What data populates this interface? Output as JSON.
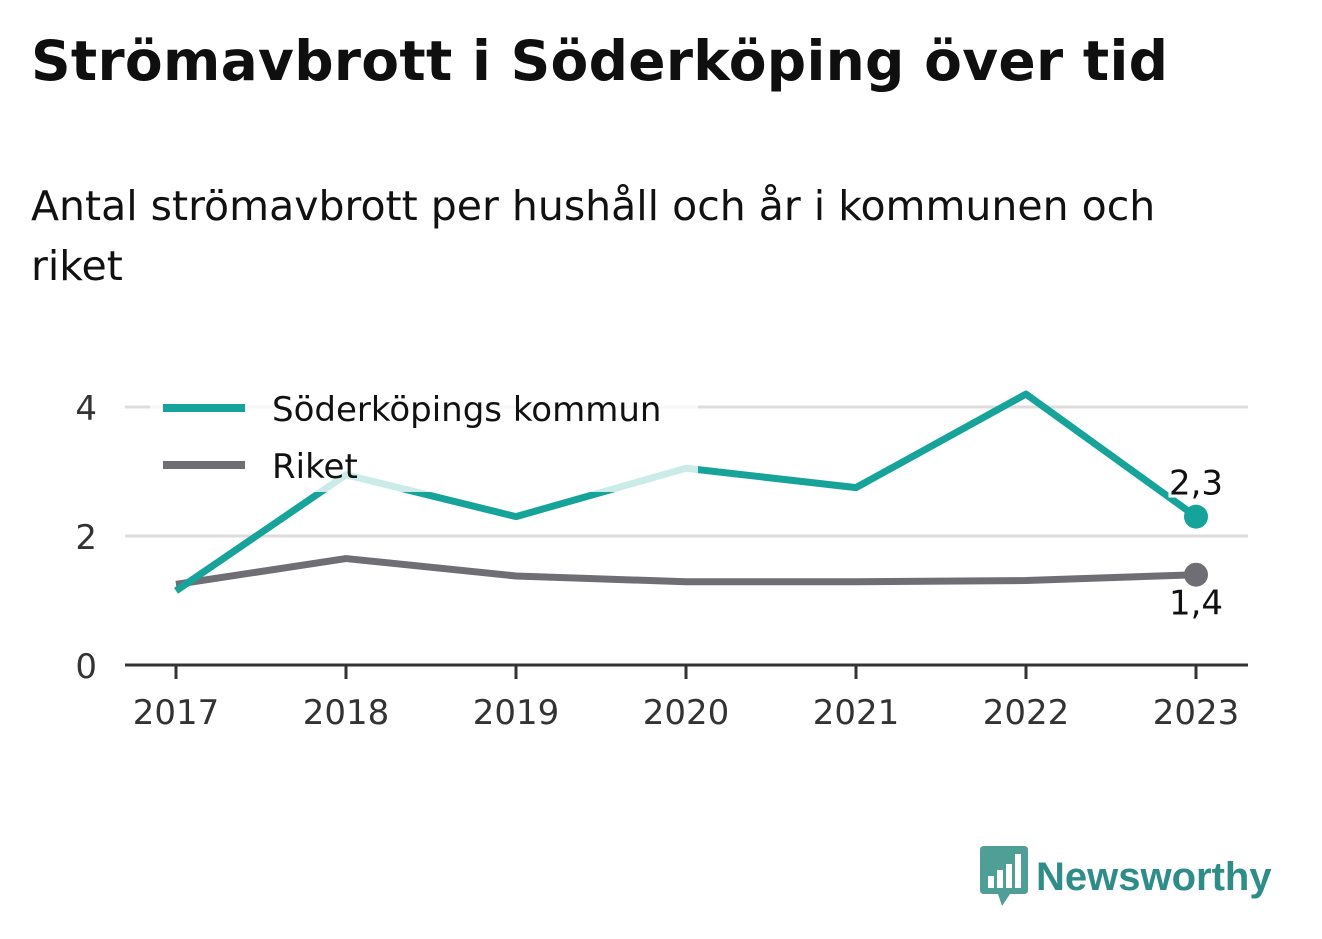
{
  "title": "Strömavbrott i Söderköping över tid",
  "subtitle": "Antal strömavbrott per hushåll och år i kommunen och riket",
  "brand": "Newsworthy",
  "colors": {
    "municipality": "#16a49a",
    "national": "#6f6e75",
    "grid": "#dcdcdc",
    "axis": "#333333",
    "brand": "#2e8d88"
  },
  "chart_data": {
    "type": "line",
    "categories": [
      "2017",
      "2018",
      "2019",
      "2020",
      "2021",
      "2022",
      "2023"
    ],
    "series": [
      {
        "name": "Söderköpings kommun",
        "values": [
          1.15,
          2.95,
          2.3,
          3.05,
          2.75,
          4.2,
          2.3
        ],
        "color": "#16a49a",
        "end_label": "2,3"
      },
      {
        "name": "Riket",
        "values": [
          1.25,
          1.65,
          1.38,
          1.29,
          1.29,
          1.31,
          1.4
        ],
        "color": "#6f6e75",
        "end_label": "1,4"
      }
    ],
    "yticks": [
      "0",
      "2",
      "4"
    ],
    "ylim": [
      0,
      4.5
    ],
    "grid": true,
    "legend_position": "top-left"
  }
}
